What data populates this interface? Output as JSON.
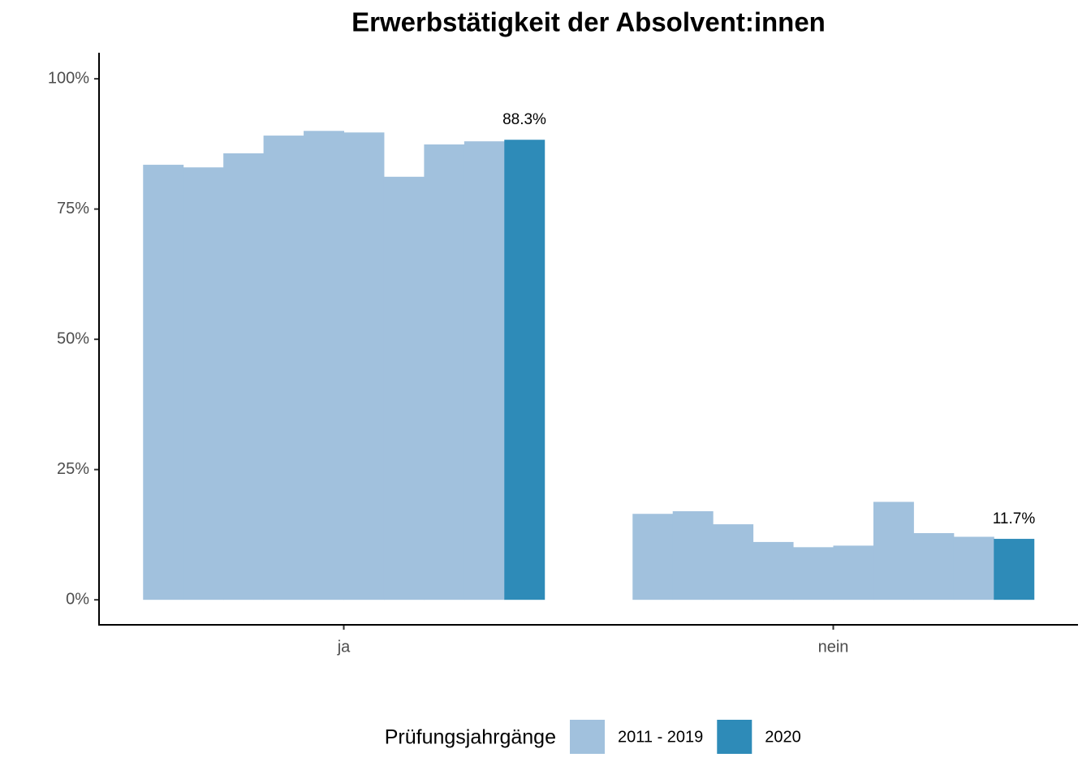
{
  "chart_data": {
    "type": "bar",
    "title": "Erwerbstätigkeit der Absolvent:innen",
    "categories": [
      "ja",
      "nein"
    ],
    "series": [
      {
        "name": "2011 - 2019",
        "color": "#a1c1dd",
        "values": [
          [
            83.5,
            83.0,
            85.7,
            89.1,
            90.0,
            89.7,
            81.2,
            87.4,
            88.0
          ],
          [
            16.5,
            17.0,
            14.5,
            11.1,
            10.1,
            10.4,
            18.8,
            12.8,
            12.1
          ]
        ]
      },
      {
        "name": "2020",
        "color": "#2e8bb8",
        "values": [
          88.3,
          11.7
        ],
        "value_labels": [
          "88.3%",
          "11.7%"
        ]
      }
    ],
    "ylim": [
      -4.8,
      105
    ],
    "yticks": [
      {
        "value": 0,
        "label": "0%"
      },
      {
        "value": 25,
        "label": "25%"
      },
      {
        "value": 50,
        "label": "50%"
      },
      {
        "value": 75,
        "label": "75%"
      },
      {
        "value": 100,
        "label": "100%"
      }
    ],
    "legend_title": "Prüfungsjahrgänge",
    "legend_position": "bottom"
  }
}
